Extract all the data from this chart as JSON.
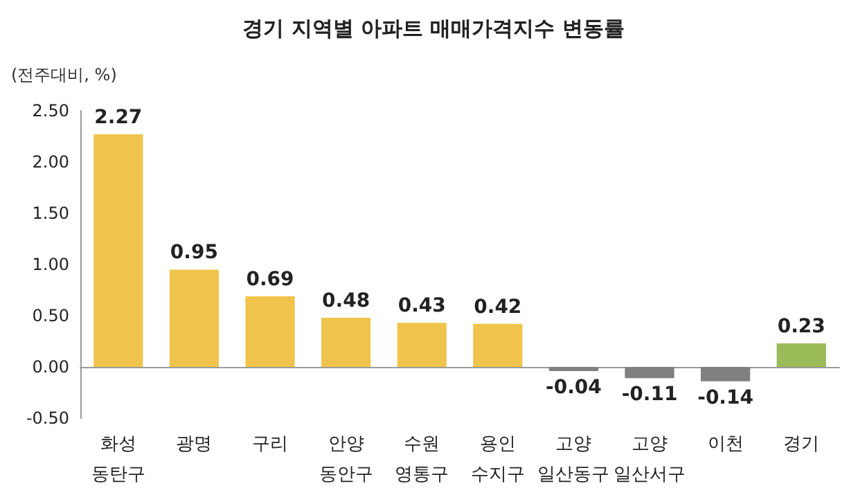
{
  "chart_data": {
    "type": "bar",
    "title": "경기 지역별 아파트 매매가격지수 변동률",
    "ylabel": "(전주대비, %)",
    "categories": [
      "화성\n동탄구",
      "광명",
      "구리",
      "안양\n동안구",
      "수원\n영통구",
      "용인\n수지구",
      "고양\n일산동구",
      "고양\n일산서구",
      "이천",
      "경기"
    ],
    "values": [
      2.27,
      0.95,
      0.69,
      0.48,
      0.43,
      0.42,
      -0.04,
      -0.11,
      -0.14,
      0.23
    ],
    "colors": [
      "#f0c44c",
      "#f0c44c",
      "#f0c44c",
      "#f0c44c",
      "#f0c44c",
      "#f0c44c",
      "#808080",
      "#808080",
      "#808080",
      "#9bbb59"
    ],
    "ylim": [
      -0.5,
      2.5
    ],
    "yticks": [
      {
        "value": -0.5,
        "label": "-0.50"
      },
      {
        "value": 0,
        "label": "0.00"
      },
      {
        "value": 0.5,
        "label": "0.50"
      },
      {
        "value": 1,
        "label": "1.00"
      },
      {
        "value": 1.5,
        "label": "1.50"
      },
      {
        "value": 2,
        "label": "2.00"
      },
      {
        "value": 2.5,
        "label": "2.50"
      }
    ],
    "data_labels": true
  }
}
